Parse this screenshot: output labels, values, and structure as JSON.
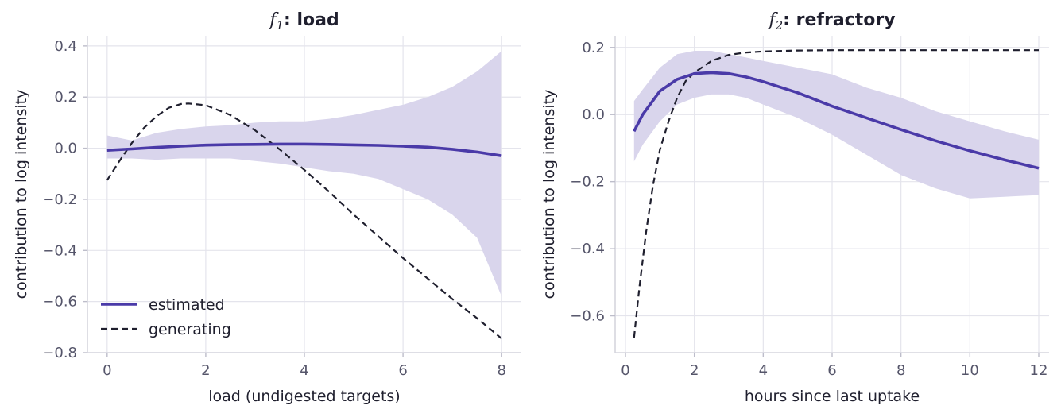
{
  "colors": {
    "estimated": "#4a3aa8",
    "band": "#d9d5ec",
    "generating": "#1f1f2e"
  },
  "legend": {
    "estimated": "estimated",
    "generating": "generating"
  },
  "chart_data": [
    {
      "type": "line",
      "title_math": "f",
      "title_sub": "1",
      "title_text": ": load",
      "xlabel": "load (undigested targets)",
      "ylabel": "contribution to log intensity",
      "xlim": [
        -0.4,
        8.4
      ],
      "ylim": [
        -0.8,
        0.44
      ],
      "xticks": [
        0,
        2,
        4,
        6,
        8
      ],
      "yticks": [
        -0.8,
        -0.6,
        -0.4,
        -0.2,
        0.0,
        0.2,
        0.4
      ],
      "ytick_labels": [
        "−0.8",
        "−0.6",
        "−0.4",
        "−0.2",
        "0.0",
        "0.2",
        "0.4"
      ],
      "grid": true,
      "legend_position": "lower-left",
      "series": [
        {
          "name": "estimated",
          "style": "solid",
          "x": [
            0,
            0.5,
            1,
            1.5,
            2,
            2.5,
            3,
            3.5,
            4,
            4.5,
            5,
            5.5,
            6,
            6.5,
            7,
            7.5,
            8
          ],
          "y": [
            -0.008,
            -0.003,
            0.003,
            0.008,
            0.012,
            0.014,
            0.015,
            0.016,
            0.016,
            0.015,
            0.013,
            0.011,
            0.008,
            0.004,
            -0.004,
            -0.015,
            -0.03
          ],
          "upper": [
            0.05,
            0.03,
            0.06,
            0.075,
            0.085,
            0.09,
            0.1,
            0.105,
            0.105,
            0.115,
            0.13,
            0.15,
            0.17,
            0.2,
            0.24,
            0.3,
            0.38
          ],
          "lower": [
            -0.04,
            -0.04,
            -0.045,
            -0.04,
            -0.04,
            -0.04,
            -0.05,
            -0.06,
            -0.075,
            -0.09,
            -0.1,
            -0.12,
            -0.16,
            -0.2,
            -0.26,
            -0.35,
            -0.58
          ]
        },
        {
          "name": "generating",
          "style": "dashed",
          "x": [
            0,
            0.25,
            0.5,
            0.75,
            1,
            1.25,
            1.5,
            1.65,
            2,
            2.5,
            3,
            3.5,
            4,
            4.5,
            5,
            5.5,
            6,
            6.5,
            7,
            7.5,
            8
          ],
          "y": [
            -0.125,
            -0.05,
            0.02,
            0.08,
            0.125,
            0.158,
            0.173,
            0.175,
            0.168,
            0.13,
            0.07,
            -0.005,
            -0.085,
            -0.17,
            -0.26,
            -0.345,
            -0.43,
            -0.51,
            -0.59,
            -0.665,
            -0.745
          ]
        }
      ]
    },
    {
      "type": "line",
      "title_math": "f",
      "title_sub": "2",
      "title_text": ": refractory",
      "xlabel": "hours since last uptake",
      "ylabel": "contribution to log intensity",
      "xlim": [
        -0.3,
        12.3
      ],
      "ylim": [
        -0.71,
        0.235
      ],
      "xticks": [
        0,
        2,
        4,
        6,
        8,
        10,
        12
      ],
      "yticks": [
        -0.6,
        -0.4,
        -0.2,
        0.0,
        0.2
      ],
      "ytick_labels": [
        "−0.6",
        "−0.4",
        "−0.2",
        "0.0",
        "0.2"
      ],
      "grid": true,
      "series": [
        {
          "name": "estimated",
          "style": "solid",
          "x": [
            0.25,
            0.5,
            1,
            1.5,
            2,
            2.5,
            3,
            3.5,
            4,
            5,
            6,
            7,
            8,
            9,
            10,
            11,
            12
          ],
          "y": [
            -0.05,
            0.0,
            0.07,
            0.105,
            0.122,
            0.125,
            0.122,
            0.112,
            0.098,
            0.065,
            0.025,
            -0.01,
            -0.045,
            -0.078,
            -0.108,
            -0.135,
            -0.16
          ],
          "upper": [
            0.04,
            0.075,
            0.14,
            0.18,
            0.19,
            0.19,
            0.18,
            0.17,
            0.16,
            0.14,
            0.12,
            0.08,
            0.05,
            0.01,
            -0.02,
            -0.05,
            -0.075
          ],
          "lower": [
            -0.14,
            -0.09,
            -0.02,
            0.03,
            0.05,
            0.06,
            0.06,
            0.05,
            0.03,
            -0.01,
            -0.06,
            -0.12,
            -0.18,
            -0.22,
            -0.25,
            -0.245,
            -0.24
          ]
        },
        {
          "name": "generating",
          "style": "dashed",
          "x": [
            0.25,
            0.4,
            0.6,
            0.8,
            1,
            1.25,
            1.5,
            1.75,
            2,
            2.5,
            3,
            3.5,
            4,
            5,
            6,
            8,
            10,
            12
          ],
          "y": [
            -0.665,
            -0.52,
            -0.35,
            -0.21,
            -0.105,
            -0.02,
            0.05,
            0.1,
            0.125,
            0.16,
            0.178,
            0.185,
            0.188,
            0.191,
            0.192,
            0.192,
            0.192,
            0.192
          ]
        }
      ]
    }
  ]
}
